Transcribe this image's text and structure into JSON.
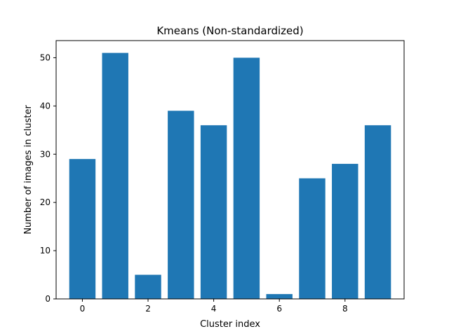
{
  "chart_data": {
    "type": "bar",
    "title": "Kmeans (Non-standardized)",
    "xlabel": "Cluster index",
    "ylabel": "Number of images in cluster",
    "x": [
      0,
      1,
      2,
      3,
      4,
      5,
      6,
      7,
      8,
      9
    ],
    "values": [
      29,
      51,
      5,
      39,
      36,
      50,
      1,
      25,
      28,
      36
    ],
    "xlim": [
      -0.8,
      9.8
    ],
    "ylim": [
      0,
      53.55
    ],
    "xticks": [
      0,
      2,
      4,
      6,
      8
    ],
    "yticks": [
      0,
      10,
      20,
      30,
      40,
      50
    ],
    "grid": false,
    "bar_color": "#1f77b4"
  }
}
